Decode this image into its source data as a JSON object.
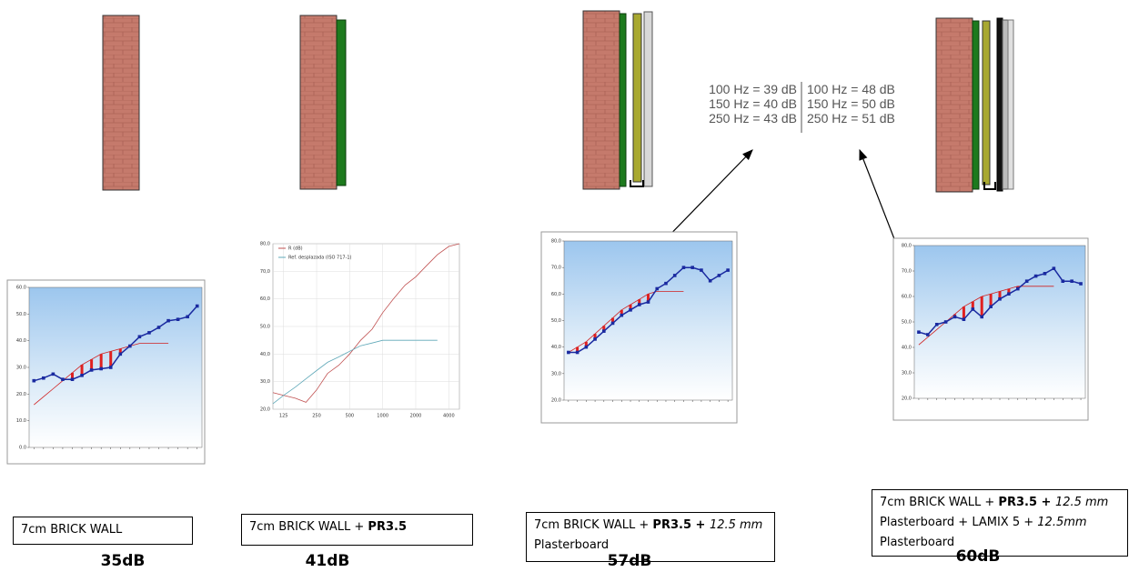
{
  "chart_data": [
    {
      "type": "category-line",
      "categories": [
        null,
        null,
        null,
        null,
        null,
        null,
        null,
        null,
        null,
        null,
        null,
        null,
        null,
        null,
        null,
        null,
        null,
        null
      ],
      "ylim": [
        0,
        60
      ],
      "yticks": [
        {
          "value": 0,
          "label": "0.0"
        },
        {
          "value": 10,
          "label": "10.0"
        },
        {
          "value": 20,
          "label": "20.0"
        },
        {
          "value": 30,
          "label": "30.0"
        },
        {
          "value": 40,
          "label": "40.0"
        },
        {
          "value": 50,
          "label": "50.0"
        },
        {
          "value": 60,
          "label": "60.0"
        }
      ],
      "series": [
        {
          "color": "#d02020",
          "values": [
            16,
            19,
            22,
            25,
            28,
            31,
            33,
            35,
            36,
            37,
            38,
            39,
            39,
            39,
            39,
            null,
            null,
            null
          ]
        },
        {
          "color": "#1a2aa0",
          "values": [
            25,
            26,
            27.5,
            25.5,
            25.5,
            27,
            29,
            29.5,
            30,
            35,
            38,
            41.5,
            43,
            45,
            47.5,
            48,
            49,
            53
          ]
        }
      ]
    },
    {
      "type": "line",
      "xscale": "log",
      "xlim": [
        100,
        5000
      ],
      "xticks": [
        125,
        250,
        500,
        1000,
        2000,
        4000
      ],
      "ylim": [
        20,
        80
      ],
      "yticks": [
        {
          "value": 20,
          "label": "20,0"
        },
        {
          "value": 30,
          "label": "30,0"
        },
        {
          "value": 40,
          "label": "40,0"
        },
        {
          "value": 50,
          "label": "50,0"
        },
        {
          "value": 60,
          "label": "60,0"
        },
        {
          "value": 70,
          "label": "70,0"
        },
        {
          "value": 80,
          "label": "80,0"
        }
      ],
      "grid": true,
      "x": [
        100,
        125,
        160,
        200,
        250,
        315,
        400,
        500,
        630,
        800,
        1000,
        1250,
        1600,
        2000,
        2500,
        3150,
        4000,
        5000
      ],
      "series": [
        {
          "name": "R (dB)",
          "color": "#c05050",
          "values": [
            26,
            25,
            24,
            22.5,
            27,
            33,
            36,
            40,
            45,
            49,
            55,
            60,
            65,
            68,
            72,
            76,
            79,
            80
          ]
        },
        {
          "name": "Ref. desplazada (ISO 717-1)",
          "color": "#5fa8b8",
          "values": [
            22,
            25,
            28,
            31,
            34,
            37,
            39,
            41,
            43,
            44,
            45,
            45,
            45,
            45,
            45,
            45,
            null,
            null
          ]
        }
      ]
    },
    {
      "type": "category-line",
      "categories": [
        null,
        null,
        null,
        null,
        null,
        null,
        null,
        null,
        null,
        null,
        null,
        null,
        null,
        null,
        null,
        null,
        null,
        null,
        null
      ],
      "ylim": [
        20,
        80
      ],
      "yticks": [
        {
          "value": 20,
          "label": "20,0"
        },
        {
          "value": 30,
          "label": "30,0"
        },
        {
          "value": 40,
          "label": "40,0"
        },
        {
          "value": 50,
          "label": "50,0"
        },
        {
          "value": 60,
          "label": "60,0"
        },
        {
          "value": 70,
          "label": "70,0"
        },
        {
          "value": 80,
          "label": "80,0"
        }
      ],
      "series": [
        {
          "color": "#d02020",
          "values": [
            38,
            40,
            42,
            45,
            48,
            51,
            54,
            56,
            58,
            60,
            61,
            61,
            61,
            61,
            null,
            null,
            null,
            null,
            null
          ]
        },
        {
          "color": "#1a2aa0",
          "values": [
            38,
            38,
            40,
            43,
            46,
            49,
            52,
            54,
            56,
            57,
            62,
            64,
            67,
            70,
            70,
            69,
            65,
            67,
            69
          ]
        }
      ]
    },
    {
      "type": "category-line",
      "categories": [
        null,
        null,
        null,
        null,
        null,
        null,
        null,
        null,
        null,
        null,
        null,
        null,
        null,
        null,
        null,
        null,
        null,
        null,
        null
      ],
      "ylim": [
        20,
        80
      ],
      "yticks": [
        {
          "value": 20,
          "label": "20,0"
        },
        {
          "value": 30,
          "label": "30,0"
        },
        {
          "value": 40,
          "label": "40,0"
        },
        {
          "value": 50,
          "label": "50,0"
        },
        {
          "value": 60,
          "label": "60,0"
        },
        {
          "value": 70,
          "label": "70,0"
        },
        {
          "value": 80,
          "label": "80,0"
        }
      ],
      "series": [
        {
          "color": "#d02020",
          "values": [
            41,
            44,
            47,
            50,
            53,
            56,
            58,
            60,
            61,
            62,
            63,
            64,
            64,
            64,
            64,
            64,
            null,
            null,
            null
          ]
        },
        {
          "color": "#1a2aa0",
          "values": [
            46,
            45,
            49,
            50,
            52,
            51,
            55,
            52,
            56,
            59,
            61,
            63,
            66,
            68,
            69,
            71,
            66,
            66,
            65
          ]
        }
      ]
    }
  ],
  "panels": [
    {
      "caption": [
        {
          "text": "7cm BRICK WALL",
          "style": "normal"
        }
      ],
      "rating": "35dB"
    },
    {
      "caption": [
        {
          "text": "7cm BRICK WALL + ",
          "style": "normal"
        },
        {
          "text": "PR3.5",
          "style": "bold"
        }
      ],
      "rating": "41dB"
    },
    {
      "caption": [
        {
          "text": "7cm BRICK WALL + ",
          "style": "normal"
        },
        {
          "text": "PR3.5 + ",
          "style": "bold"
        },
        {
          "text": "12.5 mm",
          "style": "italic"
        },
        {
          "text": " Plasterboard",
          "style": "normal"
        }
      ],
      "rating": "57dB"
    },
    {
      "caption": [
        {
          "text": "7cm BRICK WALL + ",
          "style": "normal"
        },
        {
          "text": "PR3.5 + ",
          "style": "bold"
        },
        {
          "text": "12.5 mm",
          "style": "italic"
        },
        {
          "text": " Plasterboard + LAMIX 5 + ",
          "style": "normal"
        },
        {
          "text": "12.5mm",
          "style": "italic"
        },
        {
          "text": " Plasterboard",
          "style": "normal"
        }
      ],
      "rating": "60dB"
    }
  ],
  "annotation": {
    "left": [
      "100 Hz = 39 dB",
      "150 Hz = 40 dB",
      "250 Hz = 43 dB"
    ],
    "right": [
      "100 Hz = 48 dB",
      "150 Hz = 50 dB",
      "250 Hz = 51 dB"
    ]
  }
}
